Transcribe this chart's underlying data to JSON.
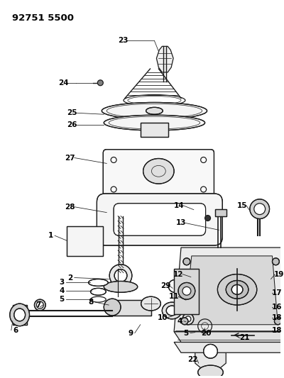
{
  "title": "92751 5500",
  "bg_color": "#ffffff",
  "line_color": "#1a1a1a",
  "fig_width": 4.0,
  "fig_height": 5.33,
  "dpi": 100
}
